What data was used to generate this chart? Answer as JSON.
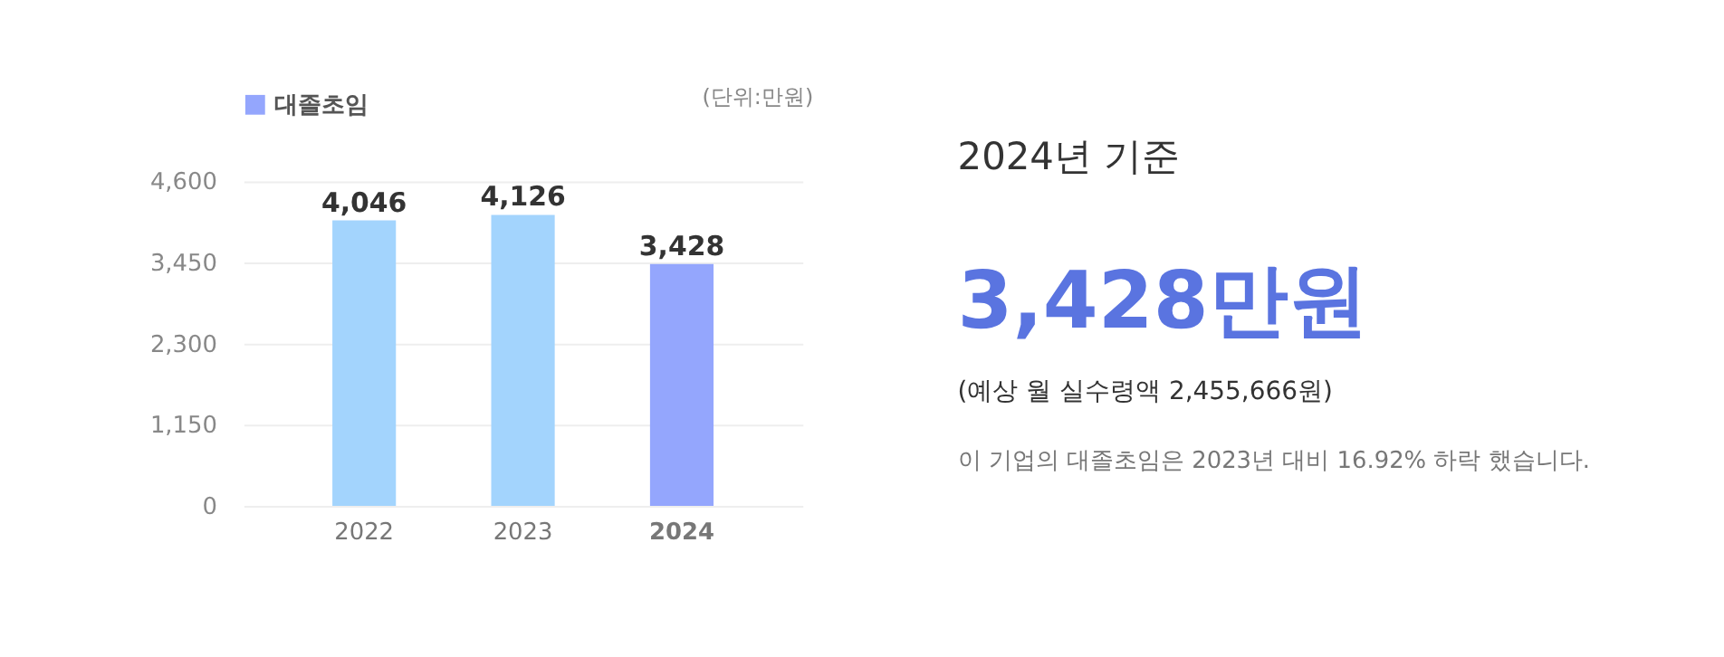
{
  "chart_data": [
    {
      "type": "bar",
      "categories": [
        "2022",
        "2023",
        "2024"
      ],
      "series": [
        {
          "name": "대졸초임",
          "color": "#94a6fd",
          "colors": [
            "#a3d4fd",
            "#a3d4fd",
            "#94a6fd"
          ],
          "values": [
            4046,
            4126,
            3428
          ],
          "value_labels": [
            "4,046",
            "4,126",
            "3,428"
          ]
        }
      ],
      "ylim": [
        0,
        4600
      ],
      "yticks": [
        0,
        {
          "value": 1150,
          "label": "1,150"
        },
        {
          "value": 2300,
          "label": "2,300"
        },
        {
          "value": 3450,
          "label": "3,450"
        },
        {
          "value": 4600,
          "label": "4,600"
        }
      ],
      "grid": "y",
      "legend": "top left",
      "annotations": [
        "(단위:만원)"
      ]
    },
    {
      "type": "other",
      "title": "2024년 기준",
      "annotations": [
        "3,428만원",
        "(예상 월 실수령액 2,455,666원)",
        "이 기업의 대졸초임은 2023년 대비 16.92% 하락 했습니다."
      ]
    }
  ]
}
